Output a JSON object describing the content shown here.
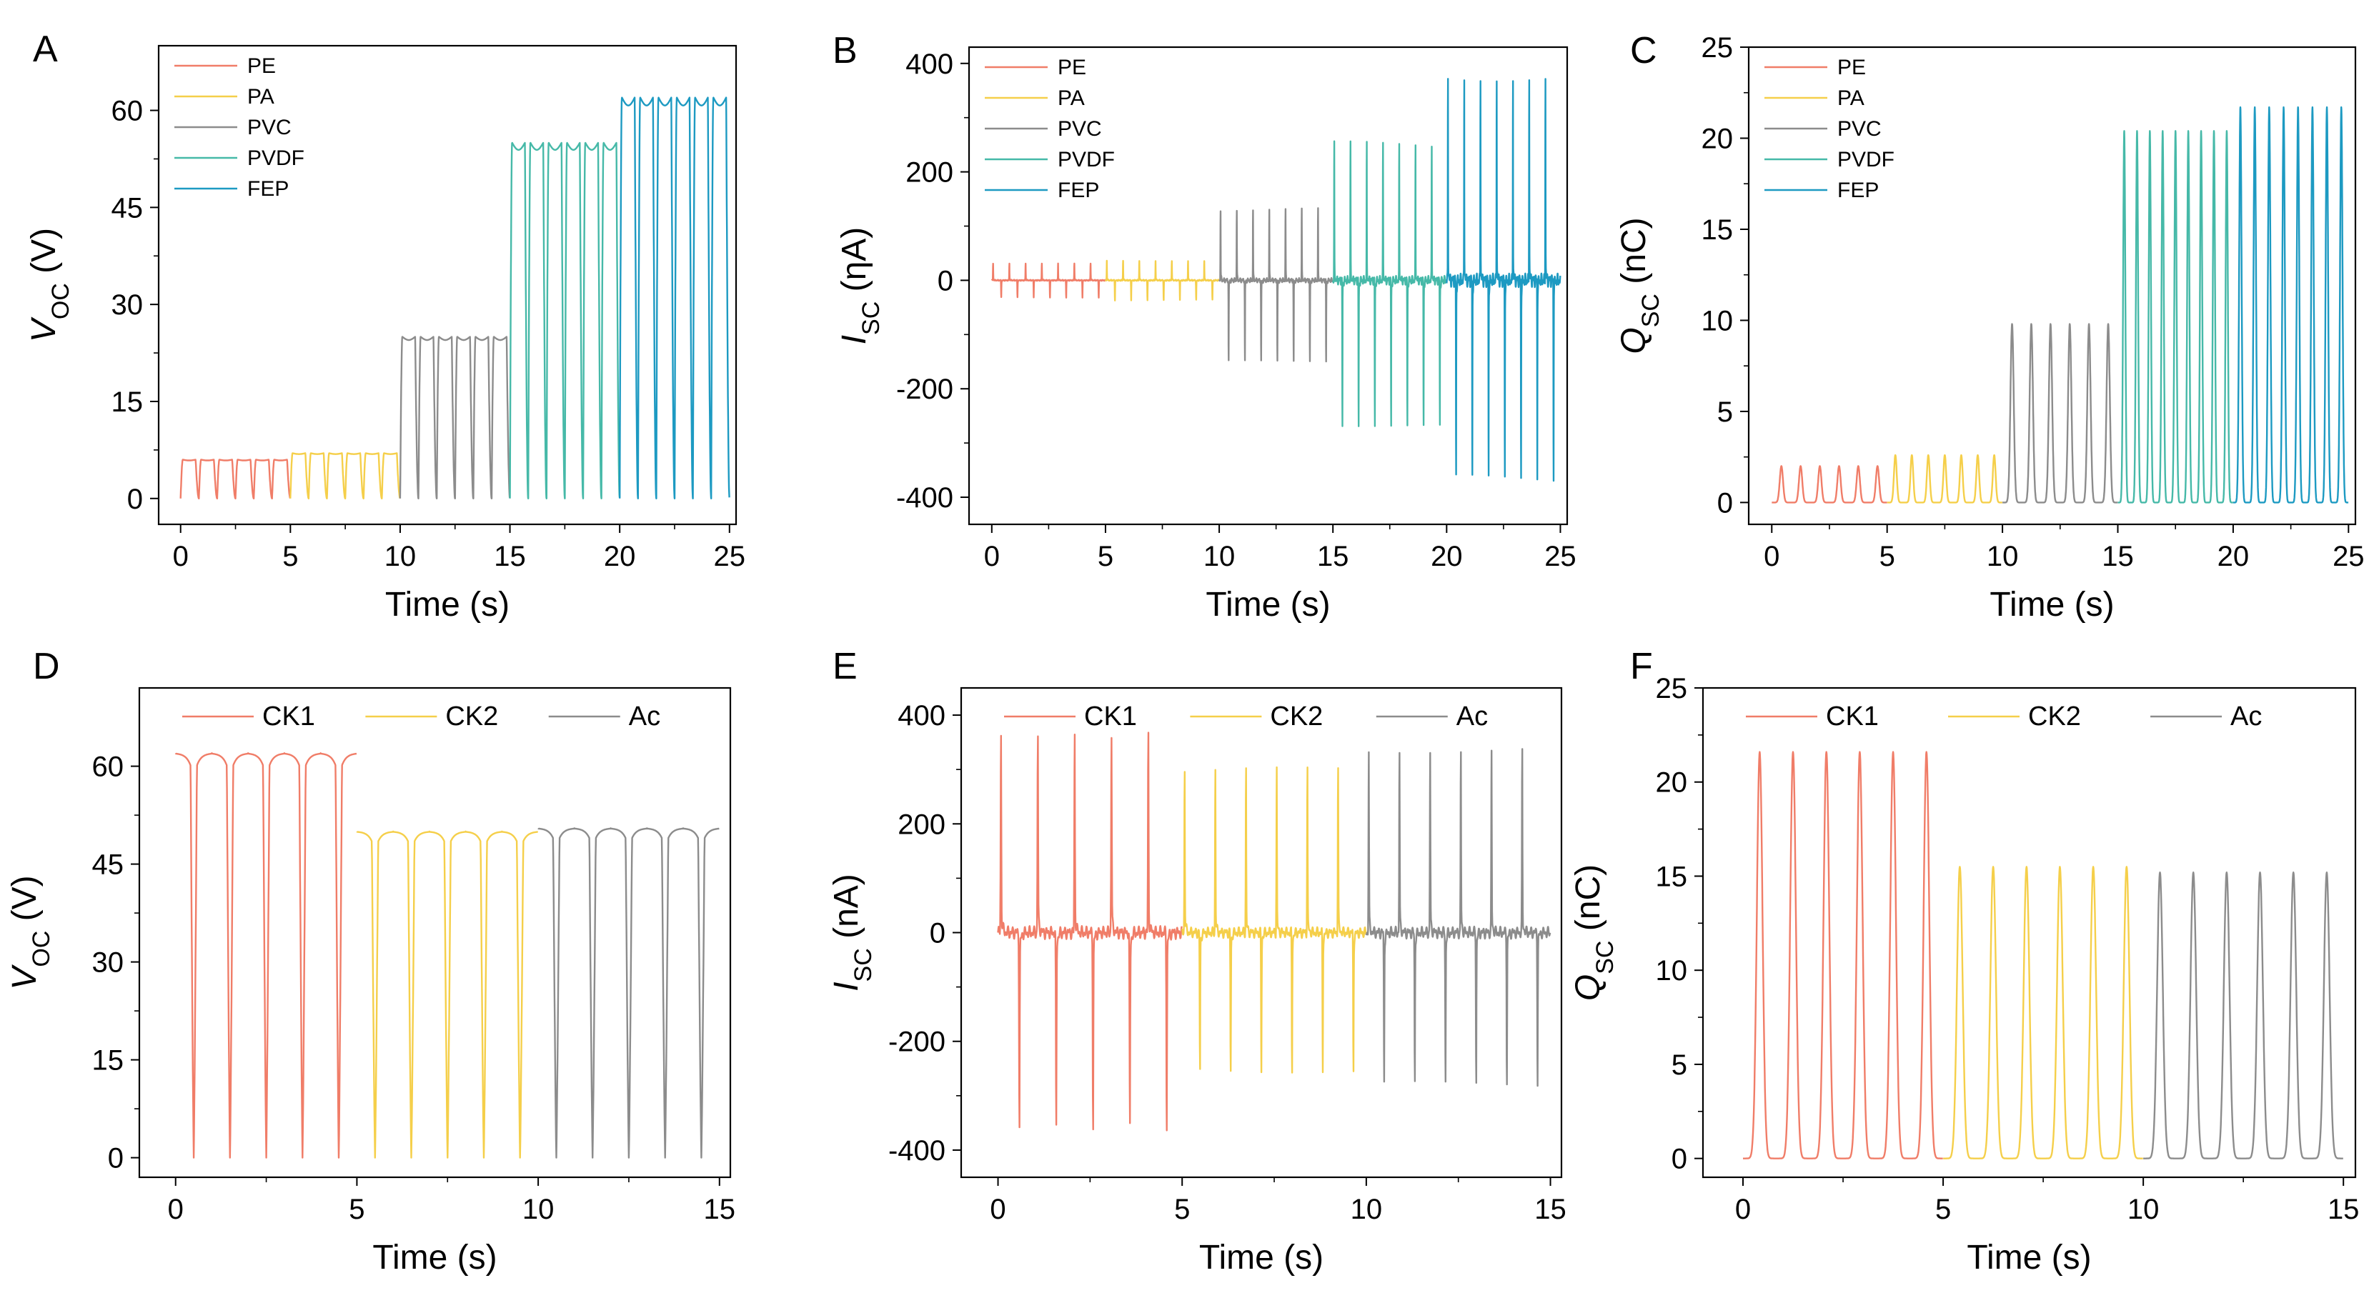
{
  "colors": {
    "PE": "#F07D68",
    "PA": "#F5CF4A",
    "PVC": "#8C8C8C",
    "PVDF": "#46B9A8",
    "FEP": "#1D9AC2",
    "CK1": "#F07D68",
    "CK2": "#F5CF4A",
    "Ac": "#8C8C8C"
  },
  "chart_data": [
    {
      "panel": "A",
      "type": "line",
      "ylabel_main": "V",
      "ylabel_sub": "OC",
      "ylabel_unit": " (V)",
      "xlabel": "Time (s)",
      "xlim": [
        -1,
        25.3
      ],
      "ylim": [
        -4,
        70
      ],
      "xticks": [
        0,
        5,
        10,
        15,
        20,
        25
      ],
      "xtick_labels": [
        "0",
        "5",
        "10",
        "15",
        "20",
        "25"
      ],
      "yticks": [
        0,
        15,
        30,
        45,
        60
      ],
      "ytick_labels": [
        "0",
        "15",
        "30",
        "45",
        "60"
      ],
      "legend_position": "top-left",
      "series": [
        {
          "name": "PE",
          "x_range": [
            0,
            5
          ],
          "baseline": 0,
          "peak": 6,
          "n_cycles": 6,
          "shape": "voltage"
        },
        {
          "name": "PA",
          "x_range": [
            5,
            10
          ],
          "baseline": 0,
          "peak": 7,
          "n_cycles": 6,
          "shape": "voltage"
        },
        {
          "name": "PVC",
          "x_range": [
            10,
            15
          ],
          "baseline": 0,
          "peak": 25,
          "n_cycles": 6,
          "shape": "voltage"
        },
        {
          "name": "PVDF",
          "x_range": [
            15,
            20
          ],
          "baseline": 0,
          "peak": 55,
          "n_cycles": 6,
          "shape": "voltage"
        },
        {
          "name": "FEP",
          "x_range": [
            20,
            25
          ],
          "baseline": 0,
          "peak": 62,
          "n_cycles": 6,
          "shape": "voltage"
        }
      ]
    },
    {
      "panel": "B",
      "type": "line",
      "ylabel_main": "I",
      "ylabel_sub": "SC",
      "ylabel_unit": " (ηA)",
      "xlabel": "Time (s)",
      "xlim": [
        -1,
        25.3
      ],
      "ylim": [
        -450,
        430
      ],
      "xticks": [
        0,
        5,
        10,
        15,
        20,
        25
      ],
      "xtick_labels": [
        "0",
        "5",
        "10",
        "15",
        "20",
        "25"
      ],
      "yticks": [
        -400,
        -200,
        0,
        200,
        400
      ],
      "ytick_labels": [
        "-400",
        "-200",
        "0",
        "200",
        "400"
      ],
      "legend_position": "top-left",
      "series": [
        {
          "name": "PE",
          "x_range": [
            0,
            5
          ],
          "pos_peak": 30,
          "neg_peak": -30,
          "n_cycles": 7,
          "shape": "current"
        },
        {
          "name": "PA",
          "x_range": [
            5,
            10
          ],
          "pos_peak": 35,
          "neg_peak": -35,
          "n_cycles": 7,
          "shape": "current"
        },
        {
          "name": "PVC",
          "x_range": [
            10,
            15
          ],
          "pos_peak": 125,
          "neg_peak": -145,
          "n_cycles": 7,
          "shape": "current"
        },
        {
          "name": "PVDF",
          "x_range": [
            15,
            20
          ],
          "pos_peak": 240,
          "neg_peak": -260,
          "n_cycles": 7,
          "shape": "current"
        },
        {
          "name": "FEP",
          "x_range": [
            20,
            25
          ],
          "pos_peak": 365,
          "neg_peak": -350,
          "n_cycles": 7,
          "shape": "current"
        }
      ]
    },
    {
      "panel": "C",
      "type": "line",
      "ylabel_main": "Q",
      "ylabel_sub": "SC",
      "ylabel_unit": " (nC)",
      "xlabel": "Time (s)",
      "xlim": [
        -1,
        25.3
      ],
      "ylim": [
        -1.2,
        25
      ],
      "xticks": [
        0,
        5,
        10,
        15,
        20,
        25
      ],
      "xtick_labels": [
        "0",
        "5",
        "10",
        "15",
        "20",
        "25"
      ],
      "yticks": [
        0,
        5,
        10,
        15,
        20,
        25
      ],
      "ytick_labels": [
        "0",
        "5",
        "10",
        "15",
        "20",
        "25"
      ],
      "legend_position": "top-left",
      "series": [
        {
          "name": "PE",
          "x_range": [
            0,
            5
          ],
          "baseline": 0,
          "peak": 2,
          "n_cycles": 6,
          "shape": "charge"
        },
        {
          "name": "PA",
          "x_range": [
            5,
            10
          ],
          "baseline": 0,
          "peak": 2.6,
          "n_cycles": 7,
          "shape": "charge"
        },
        {
          "name": "PVC",
          "x_range": [
            10,
            15
          ],
          "baseline": 0,
          "peak": 9.8,
          "n_cycles": 6,
          "shape": "charge"
        },
        {
          "name": "PVDF",
          "x_range": [
            15,
            20
          ],
          "baseline": 0,
          "peak": 20.4,
          "n_cycles": 9,
          "shape": "charge"
        },
        {
          "name": "FEP",
          "x_range": [
            20,
            25
          ],
          "baseline": 0,
          "peak": 21.7,
          "n_cycles": 8,
          "shape": "charge"
        }
      ]
    },
    {
      "panel": "D",
      "type": "line",
      "ylabel_main": "V",
      "ylabel_sub": "OC",
      "ylabel_unit": " (V)",
      "xlabel": "Time (s)",
      "xlim": [
        -1,
        15.3
      ],
      "ylim": [
        -3,
        72
      ],
      "xticks": [
        0,
        5,
        10,
        15
      ],
      "xtick_labels": [
        "0",
        "5",
        "10",
        "15"
      ],
      "yticks": [
        0,
        15,
        30,
        45,
        60
      ],
      "ytick_labels": [
        "0",
        "15",
        "30",
        "45",
        "60"
      ],
      "legend_position": "top",
      "series": [
        {
          "name": "CK1",
          "x_range": [
            0,
            5
          ],
          "baseline": 0,
          "peak": 62,
          "n_cycles": 5,
          "shape": "voltage_inv"
        },
        {
          "name": "CK2",
          "x_range": [
            5,
            10
          ],
          "baseline": 0,
          "peak": 50,
          "n_cycles": 5,
          "shape": "voltage_inv"
        },
        {
          "name": "Ac",
          "x_range": [
            10,
            15
          ],
          "baseline": 0,
          "peak": 50.5,
          "n_cycles": 5,
          "shape": "voltage_inv"
        }
      ]
    },
    {
      "panel": "E",
      "type": "line",
      "ylabel_main": "I",
      "ylabel_sub": "SC",
      "ylabel_unit": " (nA)",
      "xlabel": "Time (s)",
      "xlim": [
        -1,
        15.3
      ],
      "ylim": [
        -450,
        450
      ],
      "xticks": [
        0,
        5,
        10,
        15
      ],
      "xtick_labels": [
        "0",
        "5",
        "10",
        "15"
      ],
      "yticks": [
        -400,
        -200,
        0,
        200,
        400
      ],
      "ytick_labels": [
        "-400",
        "-200",
        "0",
        "200",
        "400"
      ],
      "legend_position": "top",
      "series": [
        {
          "name": "CK1",
          "x_range": [
            0,
            5
          ],
          "pos_peak": 350,
          "neg_peak": -345,
          "n_cycles": 5,
          "shape": "current"
        },
        {
          "name": "CK2",
          "x_range": [
            5,
            10
          ],
          "pos_peak": 290,
          "neg_peak": -245,
          "n_cycles": 6,
          "shape": "current"
        },
        {
          "name": "Ac",
          "x_range": [
            10,
            15
          ],
          "pos_peak": 320,
          "neg_peak": -265,
          "n_cycles": 6,
          "shape": "current"
        }
      ]
    },
    {
      "panel": "F",
      "type": "line",
      "ylabel_main": "Q",
      "ylabel_sub": "SC",
      "ylabel_unit": " (nC)",
      "xlabel": "Time (s)",
      "xlim": [
        -1,
        15.3
      ],
      "ylim": [
        -1,
        25
      ],
      "xticks": [
        0,
        5,
        10,
        15
      ],
      "xtick_labels": [
        "0",
        "5",
        "10",
        "15"
      ],
      "yticks": [
        0,
        5,
        10,
        15,
        20,
        25
      ],
      "ytick_labels": [
        "0",
        "5",
        "10",
        "15",
        "20",
        "25"
      ],
      "legend_position": "top",
      "series": [
        {
          "name": "CK1",
          "x_range": [
            0,
            5
          ],
          "baseline": 0,
          "peak": 21.6,
          "n_cycles": 6,
          "shape": "charge"
        },
        {
          "name": "CK2",
          "x_range": [
            5,
            10
          ],
          "baseline": 0,
          "peak": 15.5,
          "n_cycles": 6,
          "shape": "charge"
        },
        {
          "name": "Ac",
          "x_range": [
            10,
            15
          ],
          "baseline": 0,
          "peak": 15.2,
          "n_cycles": 6,
          "shape": "charge"
        }
      ]
    }
  ]
}
